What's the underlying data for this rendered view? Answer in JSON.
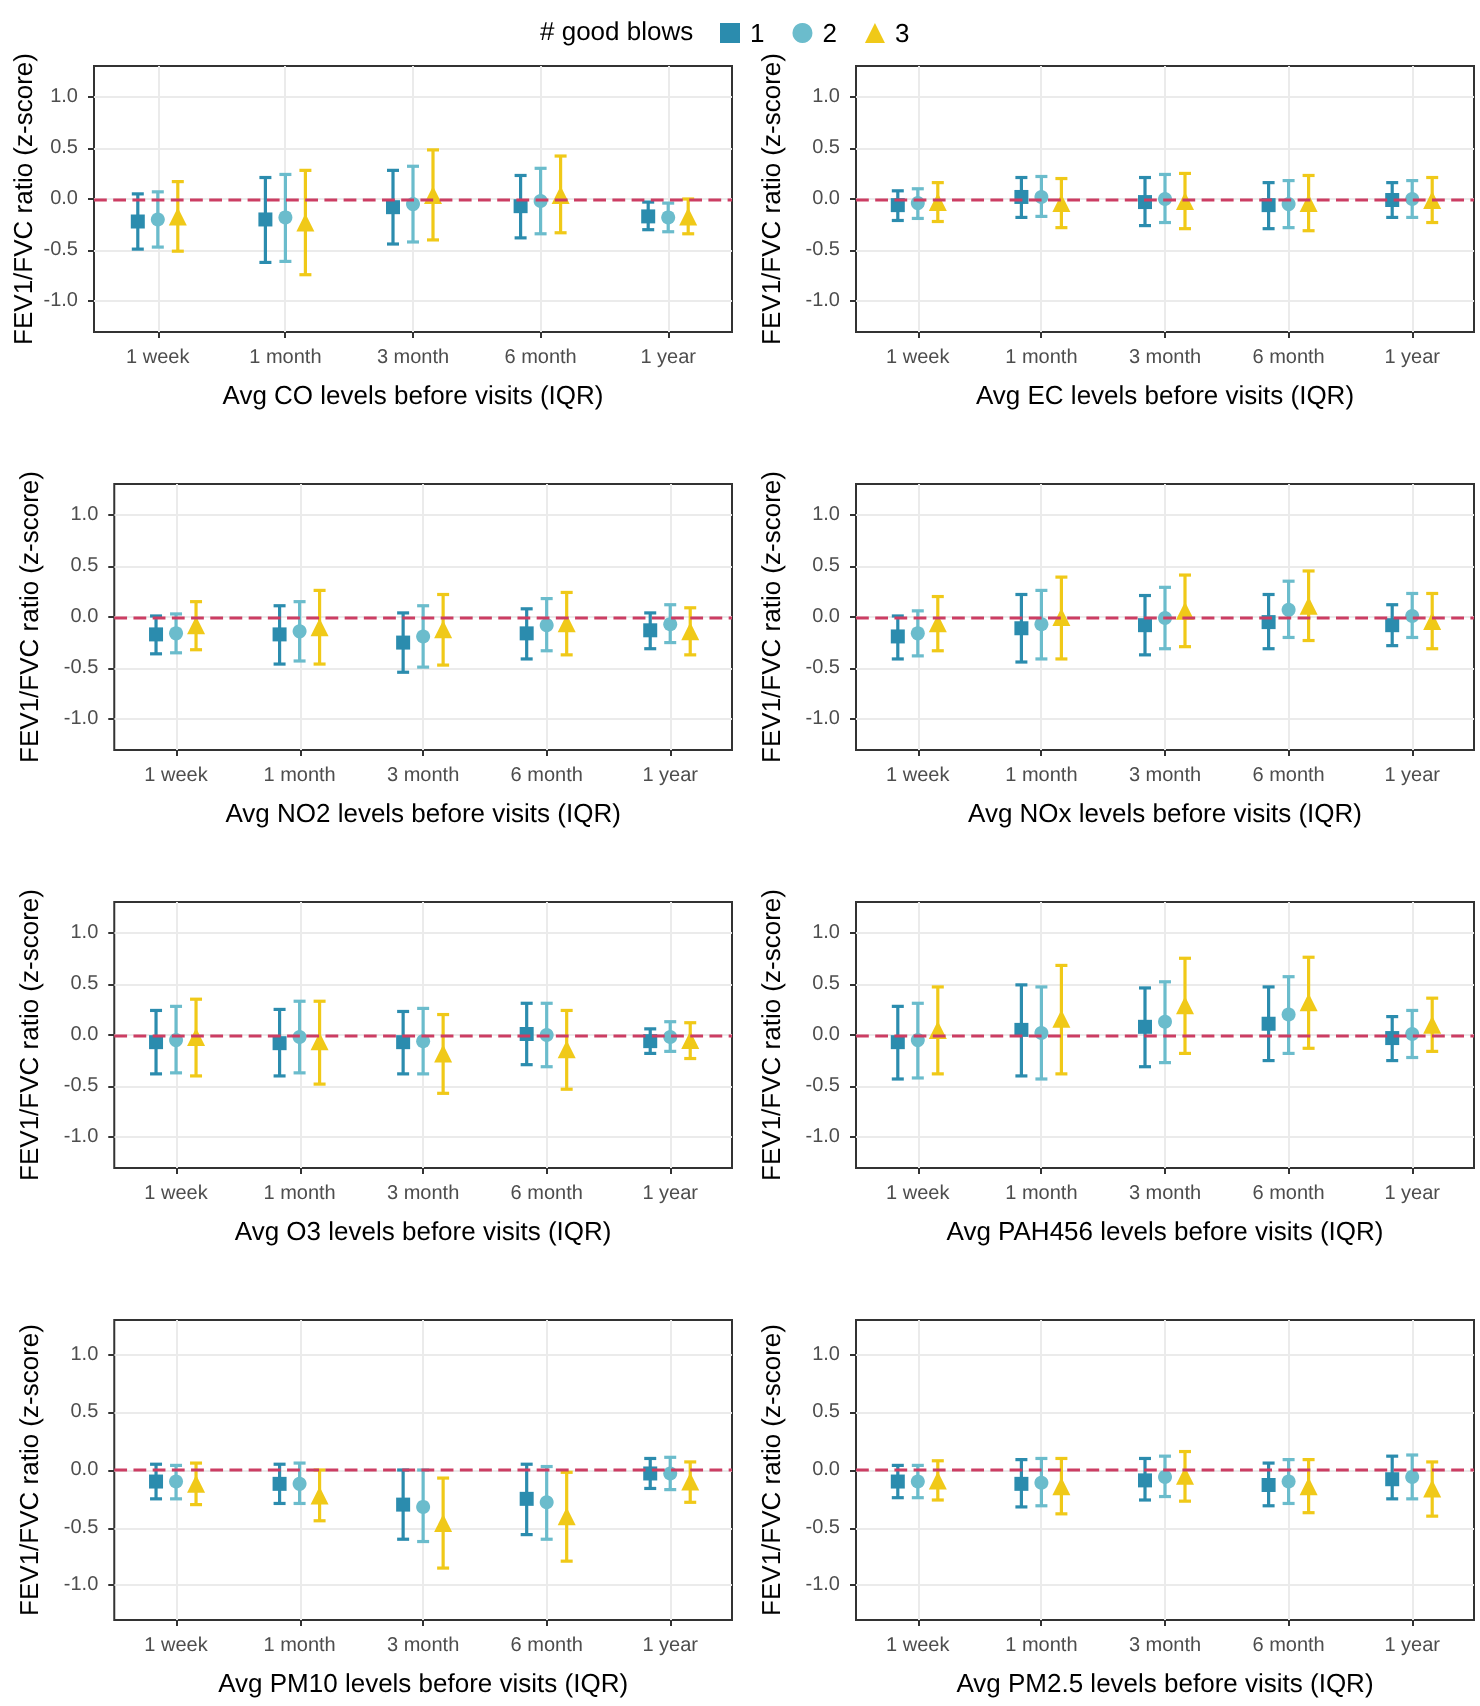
{
  "chart_data": [
    {
      "type": "scatter",
      "xlabel": "Avg CO levels before visits (IQR)",
      "ylabel": "FEV1/FVC ratio (z-score)",
      "legend_title": "# good blows",
      "legend": "top",
      "grid": true,
      "categories": [
        "1 week",
        "1 month",
        "3 month",
        "6 month",
        "1 year"
      ],
      "ylim": [
        -1.3,
        1.3
      ],
      "yticks": [
        {
          "value": -1,
          "label": "-1.0"
        },
        {
          "value": -0.5,
          "label": "-0.5"
        },
        {
          "value": 0,
          "label": "0.0"
        },
        {
          "value": 0.5,
          "label": "0.5"
        },
        {
          "value": 1,
          "label": "1.0"
        }
      ],
      "ref_lines": [
        {
          "axis": "y",
          "value": 0,
          "color": "#cc3d63",
          "line_style": "dashed"
        }
      ],
      "series": [
        {
          "name": "1",
          "color": "#2b8cae",
          "marker": "square",
          "values": [
            -0.22,
            -0.2,
            -0.08,
            -0.07,
            -0.17
          ],
          "errors": [
            [
              -0.49,
              0.05
            ],
            [
              -0.62,
              0.21
            ],
            [
              -0.44,
              0.28
            ],
            [
              -0.38,
              0.23
            ],
            [
              -0.3,
              -0.03
            ]
          ]
        },
        {
          "name": "2",
          "color": "#6bbccc",
          "marker": "circle",
          "values": [
            -0.2,
            -0.18,
            -0.05,
            -0.02,
            -0.18
          ],
          "errors": [
            [
              -0.47,
              0.07
            ],
            [
              -0.61,
              0.24
            ],
            [
              -0.42,
              0.32
            ],
            [
              -0.34,
              0.3
            ],
            [
              -0.32,
              -0.04
            ]
          ]
        },
        {
          "name": "3",
          "color": "#f0c918",
          "marker": "triangle",
          "values": [
            -0.17,
            -0.23,
            0.04,
            0.04,
            -0.17
          ],
          "errors": [
            [
              -0.51,
              0.17
            ],
            [
              -0.74,
              0.28
            ],
            [
              -0.4,
              0.48
            ],
            [
              -0.33,
              0.42
            ],
            [
              -0.34,
              0.0
            ]
          ]
        }
      ]
    },
    {
      "type": "scatter",
      "xlabel": "Avg EC levels before visits (IQR)",
      "ylabel": "FEV1/FVC ratio (z-score)",
      "grid": true,
      "categories": [
        "1 week",
        "1 month",
        "3 month",
        "6 month",
        "1 year"
      ],
      "ylim": [
        -1.3,
        1.3
      ],
      "yticks": [
        {
          "value": -1,
          "label": "-1.0"
        },
        {
          "value": -0.5,
          "label": "-0.5"
        },
        {
          "value": 0,
          "label": "0.0"
        },
        {
          "value": 0.5,
          "label": "0.5"
        },
        {
          "value": 1,
          "label": "1.0"
        }
      ],
      "ref_lines": [
        {
          "axis": "y",
          "value": 0,
          "color": "#cc3d63",
          "line_style": "dashed"
        }
      ],
      "series": [
        {
          "color": "#2b8cae",
          "marker": "square",
          "values": [
            -0.06,
            0.02,
            -0.03,
            -0.06,
            -0.01
          ],
          "errors": [
            [
              -0.21,
              0.08
            ],
            [
              -0.18,
              0.21
            ],
            [
              -0.26,
              0.21
            ],
            [
              -0.29,
              0.16
            ],
            [
              -0.18,
              0.16
            ]
          ]
        },
        {
          "color": "#6bbccc",
          "marker": "circle",
          "values": [
            -0.04,
            0.02,
            0.0,
            -0.05,
            0.0
          ],
          "errors": [
            [
              -0.19,
              0.1
            ],
            [
              -0.17,
              0.22
            ],
            [
              -0.23,
              0.24
            ],
            [
              -0.28,
              0.18
            ],
            [
              -0.18,
              0.18
            ]
          ]
        },
        {
          "color": "#f0c918",
          "marker": "triangle",
          "values": [
            -0.03,
            -0.04,
            -0.02,
            -0.04,
            -0.01
          ],
          "errors": [
            [
              -0.22,
              0.16
            ],
            [
              -0.28,
              0.2
            ],
            [
              -0.29,
              0.25
            ],
            [
              -0.31,
              0.23
            ],
            [
              -0.23,
              0.21
            ]
          ]
        }
      ]
    },
    {
      "type": "scatter",
      "xlabel": "Avg NO2 levels before visits (IQR)",
      "ylabel": "FEV1/FVC ratio (z-score)",
      "grid": true,
      "categories": [
        "1 week",
        "1 month",
        "3 month",
        "6 month",
        "1 year"
      ],
      "ylim": [
        -1.3,
        1.3
      ],
      "yticks": [
        {
          "value": -1,
          "label": "-1.0"
        },
        {
          "value": -0.5,
          "label": "-0.5"
        },
        {
          "value": 0,
          "label": "0.0"
        },
        {
          "value": 0.5,
          "label": "0.5"
        },
        {
          "value": 1,
          "label": "1.0"
        }
      ],
      "ref_lines": [
        {
          "axis": "y",
          "value": 0,
          "color": "#cc3d63",
          "line_style": "dashed"
        }
      ],
      "series": [
        {
          "color": "#2b8cae",
          "marker": "square",
          "values": [
            -0.17,
            -0.17,
            -0.25,
            -0.16,
            -0.13
          ],
          "errors": [
            [
              -0.36,
              0.01
            ],
            [
              -0.46,
              0.11
            ],
            [
              -0.54,
              0.04
            ],
            [
              -0.41,
              0.08
            ],
            [
              -0.31,
              0.04
            ]
          ]
        },
        {
          "color": "#6bbccc",
          "marker": "circle",
          "values": [
            -0.16,
            -0.14,
            -0.19,
            -0.08,
            -0.07
          ],
          "errors": [
            [
              -0.35,
              0.03
            ],
            [
              -0.43,
              0.15
            ],
            [
              -0.49,
              0.11
            ],
            [
              -0.33,
              0.18
            ],
            [
              -0.25,
              0.12
            ]
          ]
        },
        {
          "color": "#f0c918",
          "marker": "triangle",
          "values": [
            -0.08,
            -0.1,
            -0.12,
            -0.06,
            -0.14
          ],
          "errors": [
            [
              -0.32,
              0.15
            ],
            [
              -0.46,
              0.26
            ],
            [
              -0.47,
              0.22
            ],
            [
              -0.37,
              0.24
            ],
            [
              -0.37,
              0.09
            ]
          ]
        }
      ]
    },
    {
      "type": "scatter",
      "xlabel": "Avg NOx levels before visits (IQR)",
      "ylabel": "FEV1/FVC ratio (z-score)",
      "grid": true,
      "categories": [
        "1 week",
        "1 month",
        "3 month",
        "6 month",
        "1 year"
      ],
      "ylim": [
        -1.3,
        1.3
      ],
      "yticks": [
        {
          "value": -1,
          "label": "-1.0"
        },
        {
          "value": -0.5,
          "label": "-0.5"
        },
        {
          "value": 0,
          "label": "0.0"
        },
        {
          "value": 0.5,
          "label": "0.5"
        },
        {
          "value": 1,
          "label": "1.0"
        }
      ],
      "ref_lines": [
        {
          "axis": "y",
          "value": 0,
          "color": "#cc3d63",
          "line_style": "dashed"
        }
      ],
      "series": [
        {
          "color": "#2b8cae",
          "marker": "square",
          "values": [
            -0.19,
            -0.11,
            -0.08,
            -0.05,
            -0.08
          ],
          "errors": [
            [
              -0.41,
              0.01
            ],
            [
              -0.44,
              0.22
            ],
            [
              -0.37,
              0.21
            ],
            [
              -0.31,
              0.22
            ],
            [
              -0.28,
              0.12
            ]
          ]
        },
        {
          "color": "#6bbccc",
          "marker": "circle",
          "values": [
            -0.16,
            -0.07,
            -0.01,
            0.07,
            0.01
          ],
          "errors": [
            [
              -0.38,
              0.06
            ],
            [
              -0.41,
              0.26
            ],
            [
              -0.31,
              0.29
            ],
            [
              -0.2,
              0.35
            ],
            [
              -0.2,
              0.23
            ]
          ]
        },
        {
          "color": "#f0c918",
          "marker": "triangle",
          "values": [
            -0.06,
            0.0,
            0.06,
            0.11,
            -0.04
          ],
          "errors": [
            [
              -0.33,
              0.2
            ],
            [
              -0.41,
              0.39
            ],
            [
              -0.29,
              0.41
            ],
            [
              -0.23,
              0.45
            ],
            [
              -0.31,
              0.23
            ]
          ]
        }
      ]
    },
    {
      "type": "scatter",
      "xlabel": "Avg O3 levels before visits (IQR)",
      "ylabel": "FEV1/FVC ratio (z-score)",
      "grid": true,
      "categories": [
        "1 week",
        "1 month",
        "3 month",
        "6 month",
        "1 year"
      ],
      "ylim": [
        -1.3,
        1.3
      ],
      "yticks": [
        {
          "value": -1,
          "label": "-1.0"
        },
        {
          "value": -0.5,
          "label": "-0.5"
        },
        {
          "value": 0,
          "label": "0.0"
        },
        {
          "value": 0.5,
          "label": "0.5"
        },
        {
          "value": 1,
          "label": "1.0"
        }
      ],
      "ref_lines": [
        {
          "axis": "y",
          "value": 0,
          "color": "#cc3d63",
          "line_style": "dashed"
        }
      ],
      "series": [
        {
          "color": "#2b8cae",
          "marker": "square",
          "values": [
            -0.07,
            -0.08,
            -0.07,
            0.01,
            -0.06
          ],
          "errors": [
            [
              -0.38,
              0.24
            ],
            [
              -0.4,
              0.25
            ],
            [
              -0.38,
              0.23
            ],
            [
              -0.29,
              0.31
            ],
            [
              -0.18,
              0.06
            ]
          ]
        },
        {
          "color": "#6bbccc",
          "marker": "circle",
          "values": [
            -0.05,
            -0.02,
            -0.06,
            0.0,
            -0.02
          ],
          "errors": [
            [
              -0.37,
              0.28
            ],
            [
              -0.37,
              0.33
            ],
            [
              -0.38,
              0.26
            ],
            [
              -0.31,
              0.31
            ],
            [
              -0.16,
              0.13
            ]
          ]
        },
        {
          "color": "#f0c918",
          "marker": "triangle",
          "values": [
            -0.02,
            -0.06,
            -0.18,
            -0.14,
            -0.05
          ],
          "errors": [
            [
              -0.4,
              0.35
            ],
            [
              -0.48,
              0.33
            ],
            [
              -0.57,
              0.2
            ],
            [
              -0.53,
              0.24
            ],
            [
              -0.23,
              0.12
            ]
          ]
        }
      ]
    },
    {
      "type": "scatter",
      "xlabel": "Avg PAH456 levels before visits (IQR)",
      "ylabel": "FEV1/FVC ratio (z-score)",
      "grid": true,
      "categories": [
        "1 week",
        "1 month",
        "3 month",
        "6 month",
        "1 year"
      ],
      "ylim": [
        -1.3,
        1.3
      ],
      "yticks": [
        {
          "value": -1,
          "label": "-1.0"
        },
        {
          "value": -0.5,
          "label": "-0.5"
        },
        {
          "value": 0,
          "label": "0.0"
        },
        {
          "value": 0.5,
          "label": "0.5"
        },
        {
          "value": 1,
          "label": "1.0"
        }
      ],
      "ref_lines": [
        {
          "axis": "y",
          "value": 0,
          "color": "#cc3d63",
          "line_style": "dashed"
        }
      ],
      "series": [
        {
          "color": "#2b8cae",
          "marker": "square",
          "values": [
            -0.07,
            0.05,
            0.08,
            0.11,
            -0.03
          ],
          "errors": [
            [
              -0.43,
              0.28
            ],
            [
              -0.4,
              0.49
            ],
            [
              -0.31,
              0.46
            ],
            [
              -0.25,
              0.47
            ],
            [
              -0.25,
              0.18
            ]
          ]
        },
        {
          "color": "#6bbccc",
          "marker": "circle",
          "values": [
            -0.05,
            0.02,
            0.13,
            0.2,
            0.01
          ],
          "errors": [
            [
              -0.42,
              0.31
            ],
            [
              -0.43,
              0.47
            ],
            [
              -0.27,
              0.52
            ],
            [
              -0.18,
              0.57
            ],
            [
              -0.22,
              0.24
            ]
          ]
        },
        {
          "color": "#f0c918",
          "marker": "triangle",
          "values": [
            0.05,
            0.16,
            0.29,
            0.32,
            0.1
          ],
          "errors": [
            [
              -0.38,
              0.47
            ],
            [
              -0.38,
              0.68
            ],
            [
              -0.18,
              0.75
            ],
            [
              -0.13,
              0.76
            ],
            [
              -0.16,
              0.36
            ]
          ]
        }
      ]
    },
    {
      "type": "scatter",
      "xlabel": "Avg PM10 levels before visits (IQR)",
      "ylabel": "FEV1/FVC ratio (z-score)",
      "grid": true,
      "categories": [
        "1 week",
        "1 month",
        "3 month",
        "6 month",
        "1 year"
      ],
      "ylim": [
        -1.3,
        1.3
      ],
      "yticks": [
        {
          "value": -1,
          "label": "-1.0"
        },
        {
          "value": -0.5,
          "label": "-0.5"
        },
        {
          "value": 0,
          "label": "0.0"
        },
        {
          "value": 0.5,
          "label": "0.5"
        },
        {
          "value": 1,
          "label": "1.0"
        }
      ],
      "ref_lines": [
        {
          "axis": "y",
          "value": 0,
          "color": "#cc3d63",
          "line_style": "dashed"
        }
      ],
      "series": [
        {
          "color": "#2b8cae",
          "marker": "square",
          "values": [
            -0.1,
            -0.12,
            -0.3,
            -0.25,
            -0.03
          ],
          "errors": [
            [
              -0.25,
              0.05
            ],
            [
              -0.29,
              0.05
            ],
            [
              -0.6,
              0.0
            ],
            [
              -0.56,
              0.05
            ],
            [
              -0.16,
              0.1
            ]
          ]
        },
        {
          "color": "#6bbccc",
          "marker": "circle",
          "values": [
            -0.1,
            -0.12,
            -0.32,
            -0.28,
            -0.03
          ],
          "errors": [
            [
              -0.25,
              0.04
            ],
            [
              -0.29,
              0.06
            ],
            [
              -0.62,
              0.0
            ],
            [
              -0.6,
              0.03
            ],
            [
              -0.17,
              0.11
            ]
          ]
        },
        {
          "color": "#f0c918",
          "marker": "triangle",
          "values": [
            -0.12,
            -0.22,
            -0.46,
            -0.4,
            -0.1
          ],
          "errors": [
            [
              -0.3,
              0.06
            ],
            [
              -0.44,
              0.0
            ],
            [
              -0.85,
              -0.07
            ],
            [
              -0.79,
              -0.02
            ],
            [
              -0.28,
              0.07
            ]
          ]
        }
      ]
    },
    {
      "type": "scatter",
      "xlabel": "Avg PM2.5 levels before visits (IQR)",
      "ylabel": "FEV1/FVC ratio (z-score)",
      "grid": true,
      "categories": [
        "1 week",
        "1 month",
        "3 month",
        "6 month",
        "1 year"
      ],
      "ylim": [
        -1.3,
        1.3
      ],
      "yticks": [
        {
          "value": -1,
          "label": "-1.0"
        },
        {
          "value": -0.5,
          "label": "-0.5"
        },
        {
          "value": 0,
          "label": "0.0"
        },
        {
          "value": 0.5,
          "label": "0.5"
        },
        {
          "value": 1,
          "label": "1.0"
        }
      ],
      "ref_lines": [
        {
          "axis": "y",
          "value": 0,
          "color": "#cc3d63",
          "line_style": "dashed"
        }
      ],
      "series": [
        {
          "color": "#2b8cae",
          "marker": "square",
          "values": [
            -0.1,
            -0.12,
            -0.09,
            -0.13,
            -0.08
          ],
          "errors": [
            [
              -0.24,
              0.04
            ],
            [
              -0.32,
              0.09
            ],
            [
              -0.26,
              0.1
            ],
            [
              -0.31,
              0.06
            ],
            [
              -0.25,
              0.12
            ]
          ]
        },
        {
          "color": "#6bbccc",
          "marker": "circle",
          "values": [
            -0.1,
            -0.11,
            -0.06,
            -0.1,
            -0.06
          ],
          "errors": [
            [
              -0.24,
              0.04
            ],
            [
              -0.31,
              0.1
            ],
            [
              -0.23,
              0.12
            ],
            [
              -0.29,
              0.09
            ],
            [
              -0.25,
              0.13
            ]
          ]
        },
        {
          "color": "#f0c918",
          "marker": "triangle",
          "values": [
            -0.09,
            -0.14,
            -0.05,
            -0.14,
            -0.16
          ],
          "errors": [
            [
              -0.26,
              0.08
            ],
            [
              -0.38,
              0.1
            ],
            [
              -0.27,
              0.16
            ],
            [
              -0.37,
              0.09
            ],
            [
              -0.4,
              0.07
            ]
          ]
        }
      ]
    }
  ]
}
